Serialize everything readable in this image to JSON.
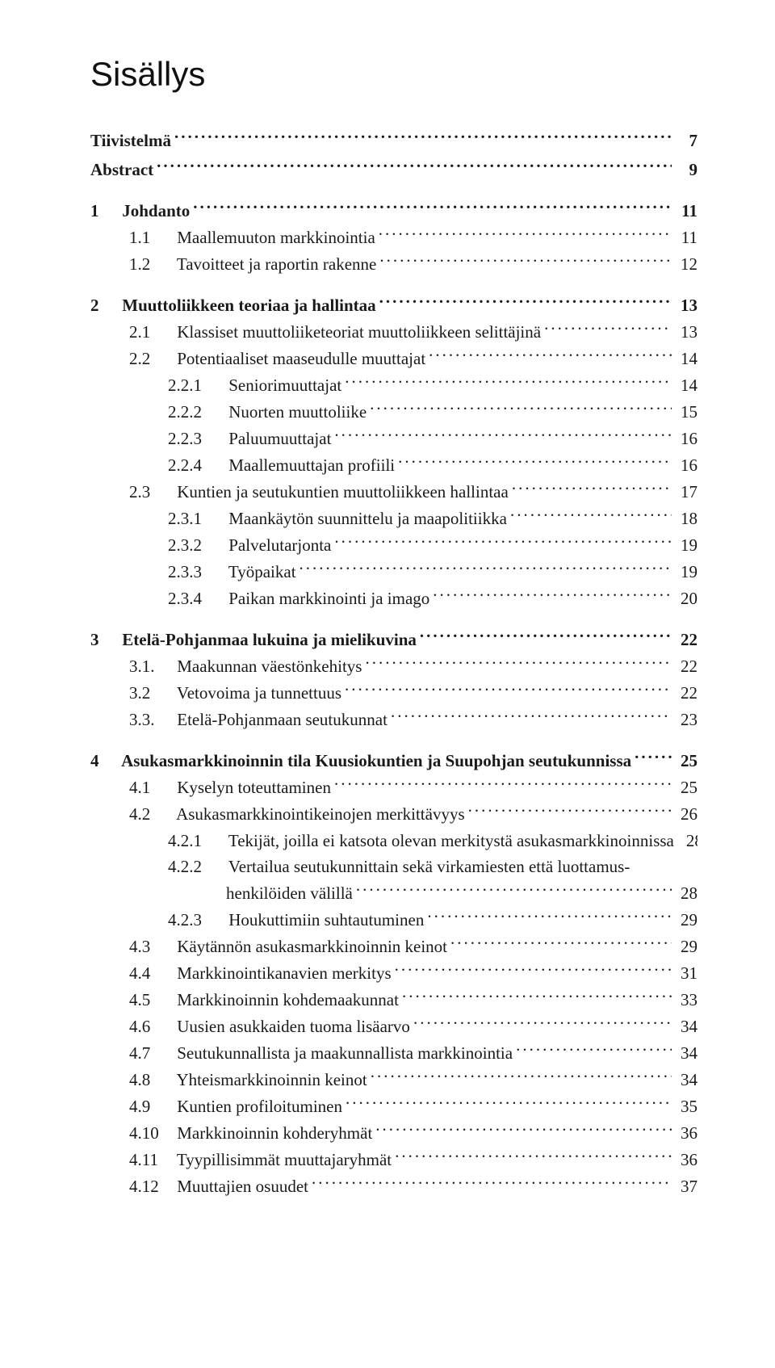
{
  "title": "Sisällys",
  "colors": {
    "text": "#1a1a1a",
    "background": "#ffffff"
  },
  "typography": {
    "title_fontfamily": "Helvetica Neue, Arial, sans-serif",
    "title_fontsize_pt": 32,
    "title_fontweight": 400,
    "body_fontfamily": "Georgia, Times New Roman, serif",
    "body_fontsize_pt": 16,
    "line_height": 1.52
  },
  "toc": [
    {
      "level": 0,
      "bold": true,
      "number": "",
      "text": "Tiivistelmä",
      "page": "7",
      "gap_after": "small"
    },
    {
      "level": 0,
      "bold": true,
      "number": "",
      "text": "Abstract",
      "page": "9",
      "gap_after": "section"
    },
    {
      "level": 0,
      "bold": true,
      "number": "1",
      "text": "Johdanto",
      "page": "11"
    },
    {
      "level": 1,
      "bold": false,
      "number": "1.1",
      "text": "Maallemuuton markkinointia",
      "page": "11"
    },
    {
      "level": 1,
      "bold": false,
      "number": "1.2",
      "text": "Tavoitteet ja raportin rakenne",
      "page": "12",
      "gap_after": "section"
    },
    {
      "level": 0,
      "bold": true,
      "number": "2",
      "text": "Muuttoliikkeen teoriaa ja hallintaa",
      "page": "13"
    },
    {
      "level": 1,
      "bold": false,
      "number": "2.1",
      "text": "Klassiset muuttoliiketeoriat muuttoliikkeen selittäjinä",
      "page": "13"
    },
    {
      "level": 1,
      "bold": false,
      "number": "2.2",
      "text": "Potentiaaliset maaseudulle muuttajat",
      "page": "14"
    },
    {
      "level": 2,
      "bold": false,
      "number": "2.2.1",
      "text": "Seniorimuuttajat",
      "page": "14"
    },
    {
      "level": 2,
      "bold": false,
      "number": "2.2.2",
      "text": "Nuorten muuttoliike",
      "page": "15"
    },
    {
      "level": 2,
      "bold": false,
      "number": "2.2.3",
      "text": "Paluumuuttajat",
      "page": "16"
    },
    {
      "level": 2,
      "bold": false,
      "number": "2.2.4",
      "text": "Maallemuuttajan profiili",
      "page": "16"
    },
    {
      "level": 1,
      "bold": false,
      "number": "2.3",
      "text": "Kuntien ja seutukuntien muuttoliikkeen hallintaa",
      "page": "17"
    },
    {
      "level": 2,
      "bold": false,
      "number": "2.3.1",
      "text": "Maankäytön suunnittelu ja maapolitiikka",
      "page": "18"
    },
    {
      "level": 2,
      "bold": false,
      "number": "2.3.2",
      "text": "Palvelutarjonta",
      "page": "19"
    },
    {
      "level": 2,
      "bold": false,
      "number": "2.3.3",
      "text": "Työpaikat",
      "page": "19"
    },
    {
      "level": 2,
      "bold": false,
      "number": "2.3.4",
      "text": "Paikan markkinointi ja imago",
      "page": "20",
      "gap_after": "section"
    },
    {
      "level": 0,
      "bold": true,
      "number": "3",
      "text": "Etelä-Pohjanmaa lukuina ja mielikuvina",
      "page": "22"
    },
    {
      "level": 1,
      "bold": false,
      "number": "3.1.",
      "text": "Maakunnan väestönkehitys",
      "page": "22"
    },
    {
      "level": 1,
      "bold": false,
      "number": "3.2",
      "text": "Vetovoima ja tunnettuus",
      "page": "22"
    },
    {
      "level": 1,
      "bold": false,
      "number": "3.3.",
      "text": "Etelä-Pohjanmaan seutukunnat",
      "page": "23",
      "gap_after": "section"
    },
    {
      "level": 0,
      "bold": true,
      "number": "4",
      "text": "Asukasmarkkinoinnin tila Kuusiokuntien ja Suupohjan seutukunnissa",
      "page": "25"
    },
    {
      "level": 1,
      "bold": false,
      "number": "4.1",
      "text": "Kyselyn toteuttaminen",
      "page": "25"
    },
    {
      "level": 1,
      "bold": false,
      "number": "4.2",
      "text": "Asukasmarkkinointikeinojen merkittävyys",
      "page": "26"
    },
    {
      "level": 2,
      "bold": false,
      "number": "4.2.1",
      "text": "Tekijät, joilla ei katsota olevan merkitystä asukasmarkkinoinnissa",
      "page": "28",
      "no_leaders": true
    },
    {
      "level": 2,
      "bold": false,
      "number": "4.2.2",
      "text": "Vertailua seutukunnittain sekä virkamiesten että luottamus-",
      "page": "",
      "no_leaders": true,
      "no_page": true
    },
    {
      "level": "hang",
      "bold": false,
      "number": "",
      "text": "henkilöiden välillä",
      "page": "28"
    },
    {
      "level": 2,
      "bold": false,
      "number": "4.2.3",
      "text": "Houkuttimiin suhtautuminen",
      "page": "29"
    },
    {
      "level": 1,
      "bold": false,
      "number": "4.3",
      "text": "Käytännön asukasmarkkinoinnin keinot",
      "page": "29"
    },
    {
      "level": 1,
      "bold": false,
      "number": "4.4",
      "text": "Markkinointikanavien merkitys",
      "page": "31"
    },
    {
      "level": 1,
      "bold": false,
      "number": "4.5",
      "text": "Markkinoinnin kohdemaakunnat",
      "page": "33"
    },
    {
      "level": 1,
      "bold": false,
      "number": "4.6",
      "text": "Uusien asukkaiden tuoma lisäarvo",
      "page": "34"
    },
    {
      "level": 1,
      "bold": false,
      "number": "4.7",
      "text": "Seutukunnallista ja maakunnallista markkinointia",
      "page": "34"
    },
    {
      "level": 1,
      "bold": false,
      "number": "4.8",
      "text": "Yhteismarkkinoinnin keinot",
      "page": "34"
    },
    {
      "level": 1,
      "bold": false,
      "number": "4.9",
      "text": "Kuntien profiloituminen",
      "page": "35"
    },
    {
      "level": 1,
      "bold": false,
      "number": "4.10",
      "text": "Markkinoinnin kohderyhmät",
      "page": "36"
    },
    {
      "level": 1,
      "bold": false,
      "number": "4.11",
      "text": "Tyypillisimmät muuttajaryhmät",
      "page": "36"
    },
    {
      "level": 1,
      "bold": false,
      "number": "4.12",
      "text": "Muuttajien osuudet",
      "page": "37"
    }
  ]
}
